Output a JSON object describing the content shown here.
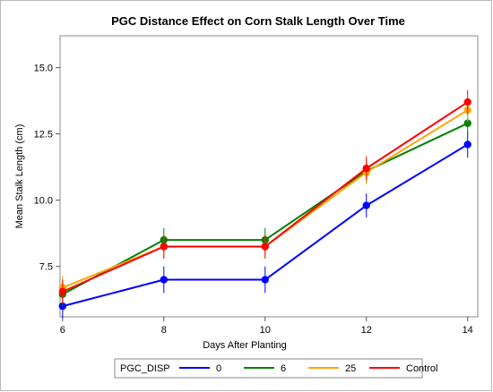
{
  "chart_data": {
    "type": "line",
    "title": "PGC Distance Effect on Corn Stalk Length Over Time",
    "xlabel": "Days After Planting",
    "ylabel": "Mean Stalk Length (cm)",
    "x": [
      6,
      8,
      10,
      12,
      14
    ],
    "x_ticks": [
      "6",
      "8",
      "10",
      "12",
      "14"
    ],
    "y_ticks": [
      "7.5",
      "10.0",
      "12.5",
      "15.0"
    ],
    "y_tick_values": [
      7.5,
      10.0,
      12.5,
      15.0
    ],
    "xlim": [
      5.95,
      14.2
    ],
    "ylim": [
      5.6,
      16.2
    ],
    "grid": false,
    "error_bars": true,
    "legend": {
      "title": "PGC_DISP",
      "position": "bottom"
    },
    "series": [
      {
        "name": "0",
        "color": "#0000ff",
        "values": [
          6.0,
          7.0,
          7.0,
          9.8,
          12.1
        ],
        "lower": [
          5.55,
          6.5,
          6.5,
          9.35,
          11.6
        ],
        "upper": [
          6.45,
          7.5,
          7.5,
          10.25,
          12.6
        ]
      },
      {
        "name": "6",
        "color": "#008000",
        "values": [
          6.45,
          8.5,
          8.5,
          11.1,
          12.9
        ],
        "lower": [
          6.0,
          8.05,
          8.05,
          10.65,
          12.45
        ],
        "upper": [
          6.9,
          8.95,
          8.95,
          11.55,
          13.35
        ]
      },
      {
        "name": "25",
        "color": "#ffa500",
        "values": [
          6.7,
          8.25,
          8.25,
          11.05,
          13.4
        ],
        "lower": [
          6.25,
          7.8,
          7.8,
          10.6,
          12.95
        ],
        "upper": [
          7.15,
          8.7,
          8.7,
          11.5,
          13.85
        ]
      },
      {
        "name": "Control",
        "color": "#ff0000",
        "values": [
          6.55,
          8.25,
          8.25,
          11.2,
          13.7
        ],
        "lower": [
          6.1,
          7.8,
          7.8,
          10.75,
          13.25
        ],
        "upper": [
          7.0,
          8.7,
          8.7,
          11.65,
          14.15
        ]
      }
    ]
  }
}
